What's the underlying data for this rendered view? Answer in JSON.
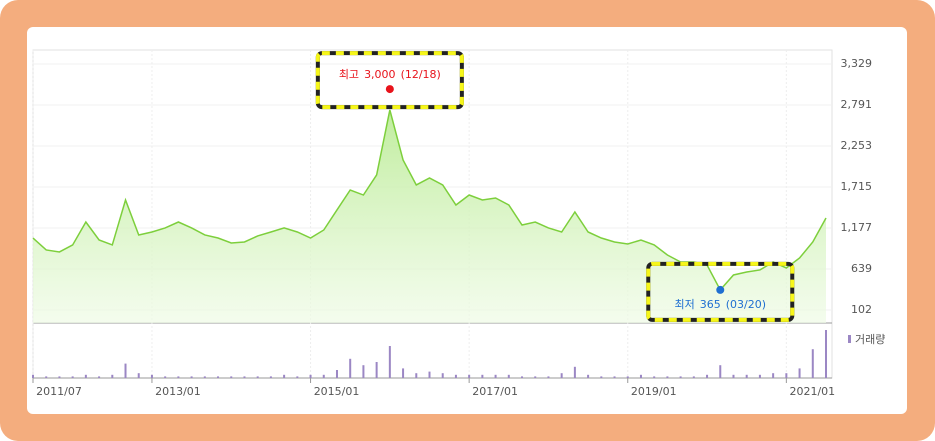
{
  "chart_data": {
    "type": "line",
    "x": [
      "2011/07",
      "2011/09",
      "2011/11",
      "2012/01",
      "2012/03",
      "2012/05",
      "2012/07",
      "2012/09",
      "2012/11",
      "2013/01",
      "2013/03",
      "2013/05",
      "2013/07",
      "2013/09",
      "2013/11",
      "2014/01",
      "2014/03",
      "2014/05",
      "2014/07",
      "2014/09",
      "2014/11",
      "2015/01",
      "2015/03",
      "2015/05",
      "2015/07",
      "2015/09",
      "2015/11",
      "2016/01",
      "2016/03",
      "2016/05",
      "2016/07",
      "2016/09",
      "2016/11",
      "2017/01",
      "2017/03",
      "2017/05",
      "2017/07",
      "2017/09",
      "2017/11",
      "2018/01",
      "2018/03",
      "2018/05",
      "2018/07",
      "2018/09",
      "2018/11",
      "2019/01",
      "2019/03",
      "2019/05",
      "2019/07",
      "2019/09",
      "2019/11",
      "2020/01",
      "2020/03",
      "2020/05",
      "2020/07",
      "2020/09",
      "2020/11",
      "2021/01",
      "2021/03",
      "2021/05",
      "2021/07"
    ],
    "series": [
      {
        "color": "#7dcf3c",
        "values": [
          1046,
          889,
          863,
          955,
          1256,
          1020,
          955,
          1545,
          1086,
          1125,
          1178,
          1256,
          1178,
          1086,
          1046,
          981,
          994,
          1073,
          1125,
          1178,
          1125,
          1046,
          1151,
          1414,
          1676,
          1610,
          1873,
          2726,
          2070,
          1742,
          1834,
          1742,
          1479,
          1610,
          1545,
          1571,
          1479,
          1217,
          1256,
          1178,
          1125,
          1388,
          1125,
          1046,
          994,
          968,
          1020,
          955,
          823,
          731,
          731,
          692,
          365,
          561,
          600,
          627,
          731,
          653,
          784,
          994,
          1309
        ]
      }
    ],
    "volume": {
      "name": "거래량",
      "color": "#9b87c4",
      "values": [
        2,
        1,
        1,
        1,
        2,
        1,
        2,
        9,
        3,
        2,
        1,
        1,
        1,
        1,
        1,
        1,
        1,
        1,
        1,
        2,
        1,
        2,
        2,
        5,
        12,
        8,
        10,
        20,
        6,
        3,
        4,
        3,
        2,
        2,
        2,
        2,
        2,
        1,
        1,
        1,
        3,
        7,
        2,
        1,
        1,
        1,
        2,
        1,
        1,
        1,
        1,
        2,
        8,
        2,
        2,
        2,
        3,
        3,
        6,
        18,
        30
      ]
    },
    "ylim": [
      -69,
      3447
    ],
    "yticks": [
      {
        "value": 3329,
        "label": "3,329"
      },
      {
        "value": 2791,
        "label": "2,791"
      },
      {
        "value": 2253,
        "label": "2,253"
      },
      {
        "value": 1715,
        "label": "1,715"
      },
      {
        "value": 1177,
        "label": "1,177"
      },
      {
        "value": 639,
        "label": "639"
      },
      {
        "value": 102,
        "label": "102"
      }
    ],
    "xticks": [
      "2011/07",
      "2013/01",
      "2015/01",
      "2017/01",
      "2019/01",
      "2021/01"
    ],
    "grid": true,
    "annotations": [
      {
        "label": "최고",
        "value": 3000,
        "value_label": "3,000",
        "date": "(12/18)",
        "color": "#e8131b"
      },
      {
        "label": "최저",
        "value": 365,
        "value_label": "365",
        "date": "(03/20)",
        "color": "#1f6fd1"
      }
    ]
  }
}
